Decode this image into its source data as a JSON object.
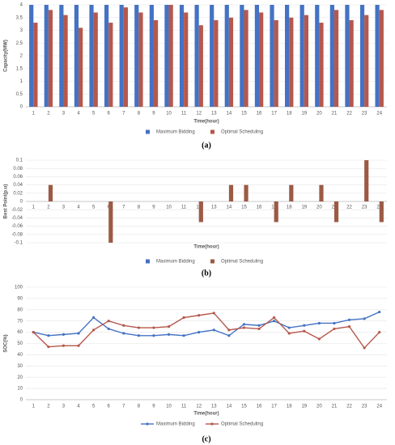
{
  "chart_data": [
    {
      "type": "bar",
      "ylabel": "Capacity(MW)",
      "xlabel": "Time(hour)",
      "caption": "(a)",
      "categories": [
        "1",
        "2",
        "3",
        "4",
        "5",
        "6",
        "7",
        "8",
        "9",
        "10",
        "11",
        "12",
        "13",
        "14",
        "15",
        "16",
        "17",
        "18",
        "19",
        "20",
        "21",
        "22",
        "23",
        "24"
      ],
      "series": [
        {
          "name": "Maximum Bidding",
          "color": "#4472c4",
          "values": [
            4,
            4,
            4,
            4,
            4,
            4,
            4,
            4,
            4,
            4,
            4,
            4,
            4,
            4,
            4,
            4,
            4,
            4,
            4,
            4,
            4,
            4,
            4,
            4
          ]
        },
        {
          "name": "Optimal Scheduling",
          "color": "#b5584c",
          "values": [
            3.3,
            3.8,
            3.6,
            3.1,
            3.7,
            3.3,
            3.9,
            3.7,
            3.4,
            4,
            3.7,
            3.2,
            3.4,
            3.5,
            3.8,
            3.7,
            3.4,
            3.5,
            3.6,
            3.3,
            3.8,
            3.4,
            3.6,
            3.8
          ]
        }
      ],
      "ylim": [
        0,
        4
      ],
      "yticks": [
        0,
        0.5,
        1,
        1.5,
        2,
        2.5,
        3,
        3.5,
        4
      ],
      "grid": true
    },
    {
      "type": "bar",
      "ylabel": "Best Point(p.u)",
      "xlabel": "Time(hour)",
      "caption": "(b)",
      "categories": [
        "1",
        "2",
        "3",
        "4",
        "5",
        "6",
        "7",
        "8",
        "9",
        "10",
        "11",
        "12",
        "13",
        "14",
        "15",
        "16",
        "17",
        "18",
        "19",
        "20",
        "21",
        "22",
        "23",
        "24"
      ],
      "series": [
        {
          "name": "Maximum Bidding",
          "color": "#4472c4",
          "values": [
            0,
            0,
            0,
            0,
            0,
            0,
            0,
            0,
            0,
            0,
            0,
            0,
            0,
            0,
            0,
            0,
            0,
            0,
            0,
            0,
            0,
            0,
            0,
            0
          ]
        },
        {
          "name": "Optimal Scheduling",
          "color": "#9c5a45",
          "values": [
            0,
            0.04,
            0,
            0,
            0,
            -0.1,
            0,
            0,
            0,
            0,
            0,
            -0.05,
            0,
            0.04,
            0.04,
            0,
            -0.05,
            0.04,
            0,
            0.04,
            -0.05,
            0,
            0.1,
            -0.05
          ]
        }
      ],
      "ylim": [
        -0.1,
        0.1
      ],
      "yticks": [
        -0.1,
        -0.08,
        -0.06,
        -0.04,
        -0.02,
        0,
        0.02,
        0.04,
        0.06,
        0.08,
        0.1
      ],
      "grid": true
    },
    {
      "type": "line",
      "ylabel": "SOC(%)",
      "xlabel": "Time(hour)",
      "caption": "(c)",
      "categories": [
        "1",
        "2",
        "3",
        "4",
        "5",
        "6",
        "7",
        "8",
        "9",
        "10",
        "11",
        "12",
        "13",
        "14",
        "15",
        "16",
        "17",
        "18",
        "19",
        "20",
        "21",
        "22",
        "23",
        "24"
      ],
      "series": [
        {
          "name": "Maximum Bidding",
          "color": "#4472c4",
          "values": [
            60,
            57,
            58,
            59,
            73,
            63,
            59,
            57,
            57,
            58,
            57,
            60,
            62,
            57,
            67,
            66,
            70,
            64,
            66,
            68,
            68,
            71,
            72,
            78
          ]
        },
        {
          "name": "Optimal Scheduling",
          "color": "#b5584c",
          "values": [
            60,
            47,
            48,
            48,
            62,
            70,
            66,
            64,
            64,
            65,
            73,
            75,
            77,
            62,
            64,
            63,
            73,
            59,
            61,
            54,
            63,
            65,
            46,
            60
          ]
        }
      ],
      "ylim": [
        0,
        100
      ],
      "yticks": [
        0,
        10,
        20,
        30,
        40,
        50,
        60,
        70,
        80,
        90,
        100
      ],
      "grid": true
    }
  ]
}
